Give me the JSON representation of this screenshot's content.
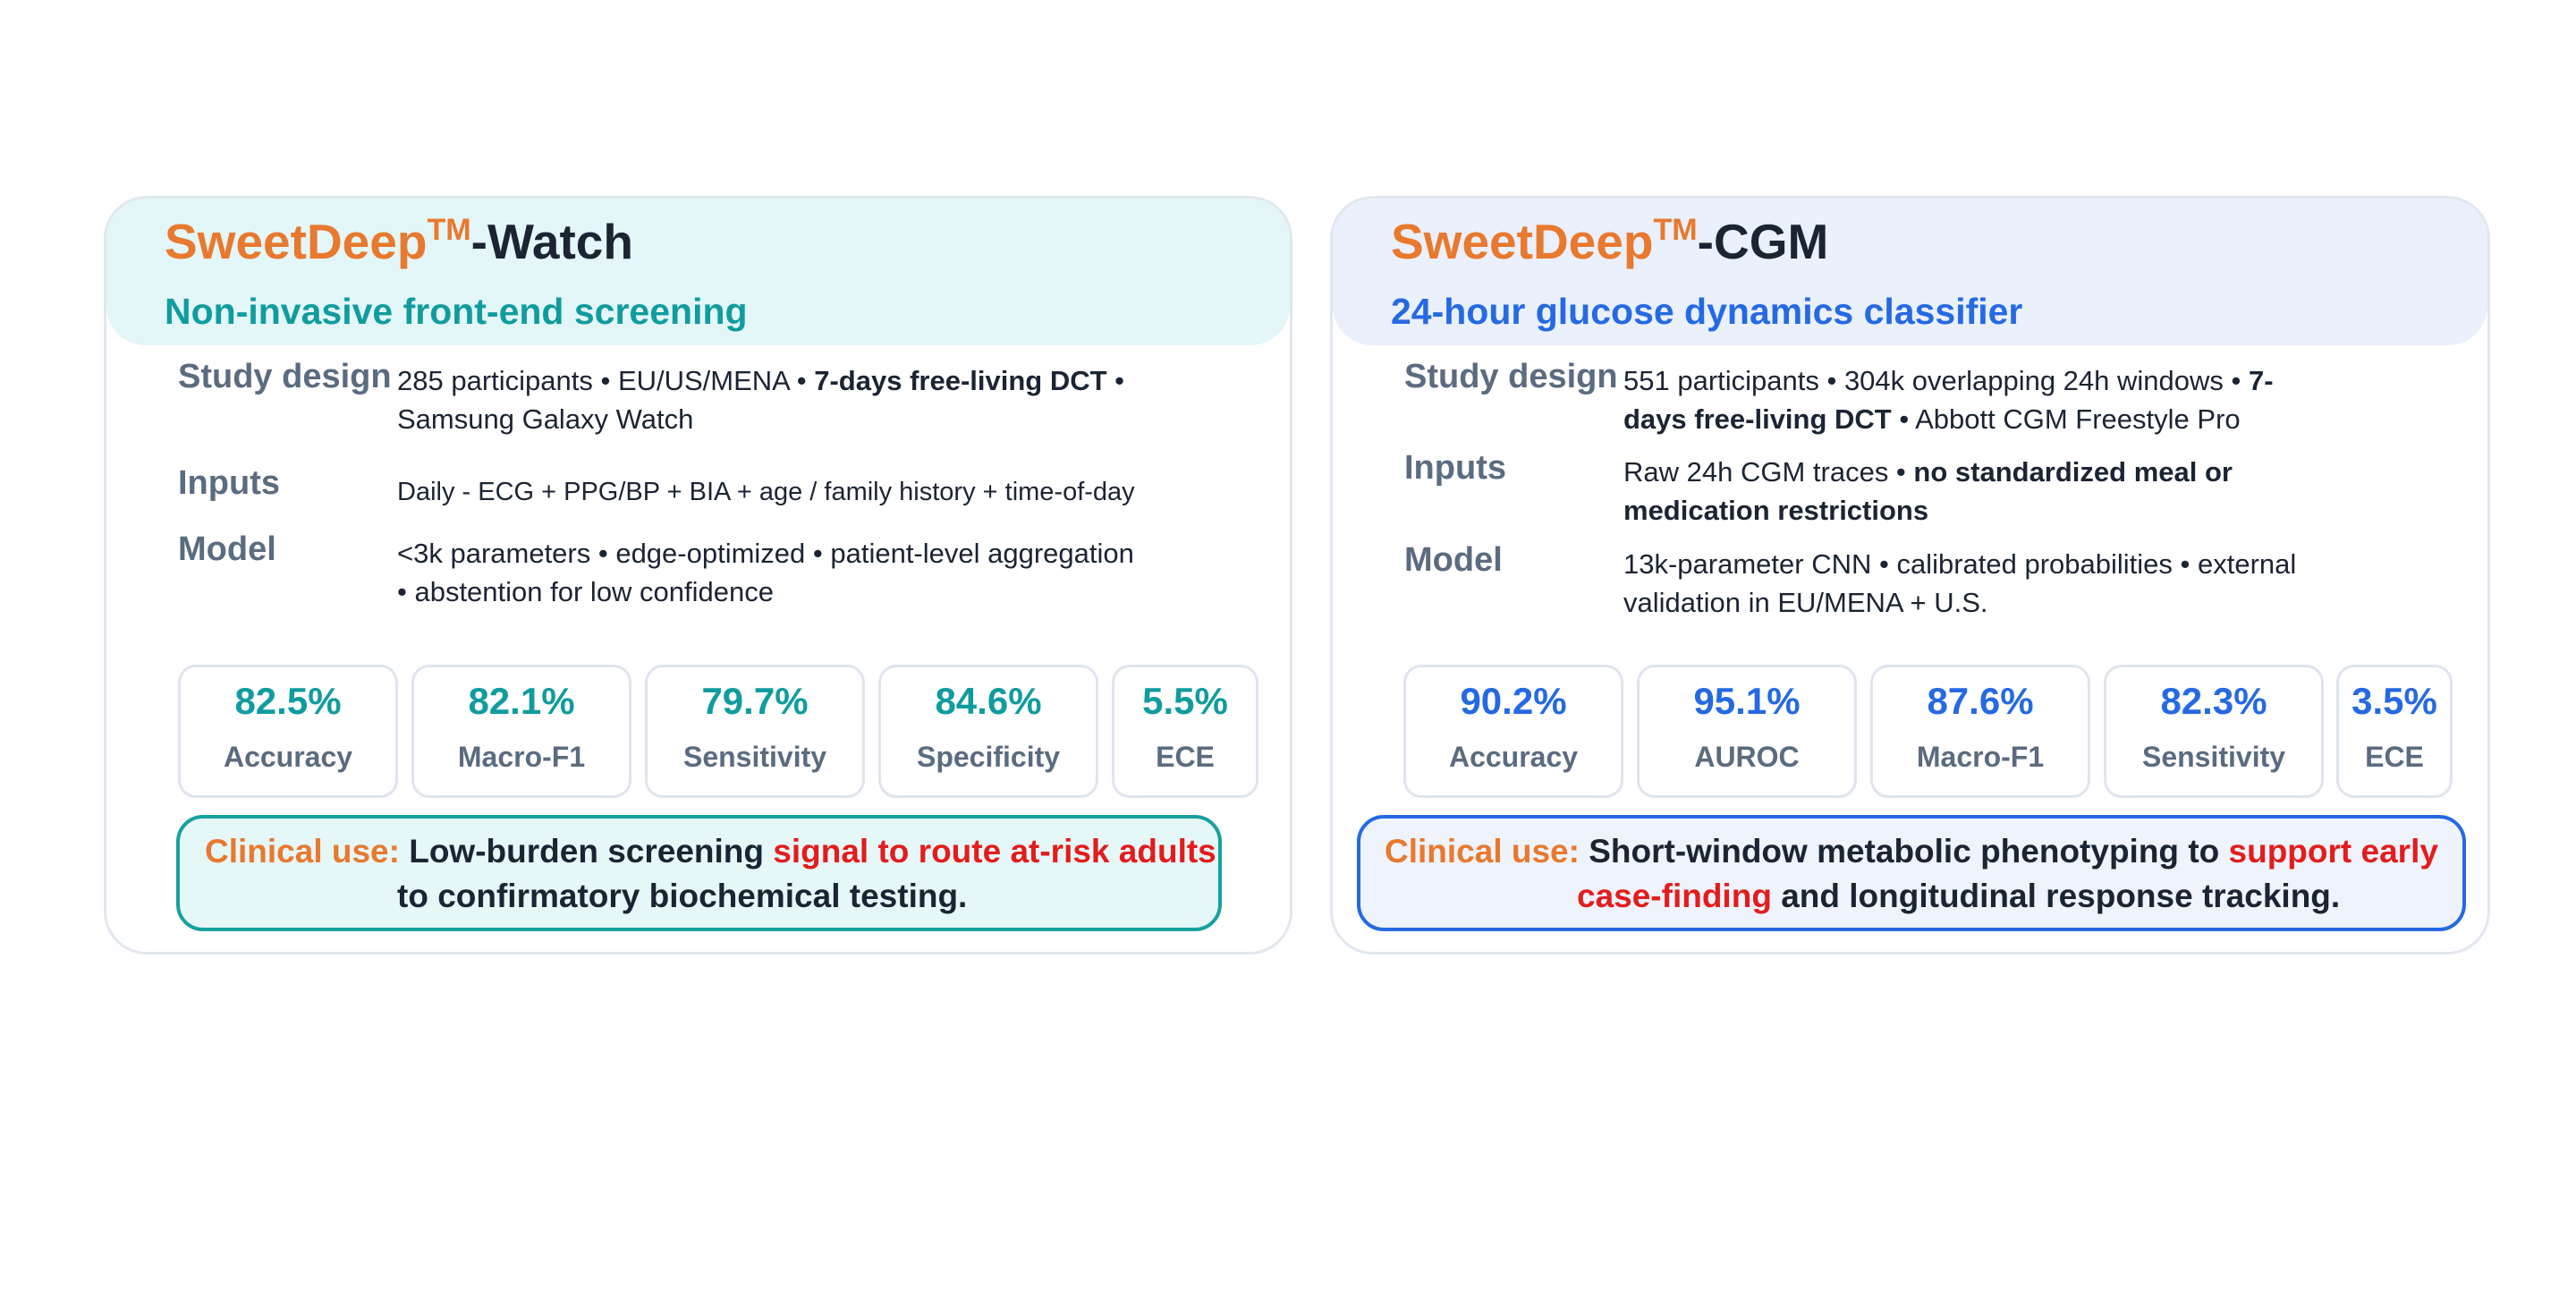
{
  "watch": {
    "brand": "SweetDeep",
    "tm": "TM",
    "product_suffix": "-Watch",
    "subtitle": "Non-invasive front-end screening",
    "rows": [
      {
        "label": "Study design",
        "line1_a": "285 participants • EU/US/MENA • ",
        "line1_b": "7-days free-living DCT",
        "line1_c": " •",
        "line2": "Samsung Galaxy Watch"
      },
      {
        "label": "Inputs",
        "line1": "Daily - ECG + PPG/BP + BIA + age / family history + time-of-day"
      },
      {
        "label": "Model",
        "line1": "<3k parameters • edge-optimized • patient-level aggregation",
        "line2": "• abstention for low confidence"
      }
    ],
    "metrics": [
      {
        "value": "82.5%",
        "label": "Accuracy"
      },
      {
        "value": "82.1%",
        "label": "Macro-F1"
      },
      {
        "value": "79.7%",
        "label": "Sensitivity"
      },
      {
        "value": "84.6%",
        "label": "Specificity"
      },
      {
        "value": "5.5%",
        "label": "ECE"
      }
    ],
    "clinical": {
      "label": "Clinical use:",
      "line1_a": " Low-burden screening ",
      "line1_b": "signal to route at-risk adults",
      "line2": "to confirmatory biochemical testing."
    },
    "colors": {
      "accent": "#109c9f",
      "header_bg": "#e3f6f8"
    }
  },
  "cgm": {
    "brand": "SweetDeep",
    "tm": "TM",
    "product_suffix": "-CGM",
    "subtitle": "24-hour glucose dynamics classifier",
    "rows": [
      {
        "label": "Study design",
        "line1_a": "551 participants • 304k overlapping 24h windows • ",
        "line1_b": "7-",
        "line2_a": "days free-living DCT",
        "line2_b": " • Abbott CGM Freestyle Pro"
      },
      {
        "label": "Inputs",
        "line1_a": "Raw 24h CGM traces • ",
        "line1_b": "no standardized meal or",
        "line2": "medication restrictions"
      },
      {
        "label": "Model",
        "line1": "13k-parameter CNN • calibrated probabilities • external",
        "line2": "validation in EU/MENA + U.S."
      }
    ],
    "metrics": [
      {
        "value": "90.2%",
        "label": "Accuracy"
      },
      {
        "value": "95.1%",
        "label": "AUROC"
      },
      {
        "value": "87.6%",
        "label": "Macro-F1"
      },
      {
        "value": "82.3%",
        "label": "Sensitivity"
      },
      {
        "value": "3.5%",
        "label": "ECE"
      }
    ],
    "clinical": {
      "label": "Clinical use:",
      "line1_a": " Short-window metabolic phenotyping to ",
      "line1_b": "support early",
      "line2_a": "case-finding",
      "line2_b": " and longitudinal response tracking."
    },
    "colors": {
      "accent": "#2569e3",
      "header_bg": "#eaf0fc"
    }
  },
  "colors": {
    "brand_orange": "#e8792e",
    "highlight_red": "#e31c1c",
    "label_gray": "#5b6b80"
  }
}
